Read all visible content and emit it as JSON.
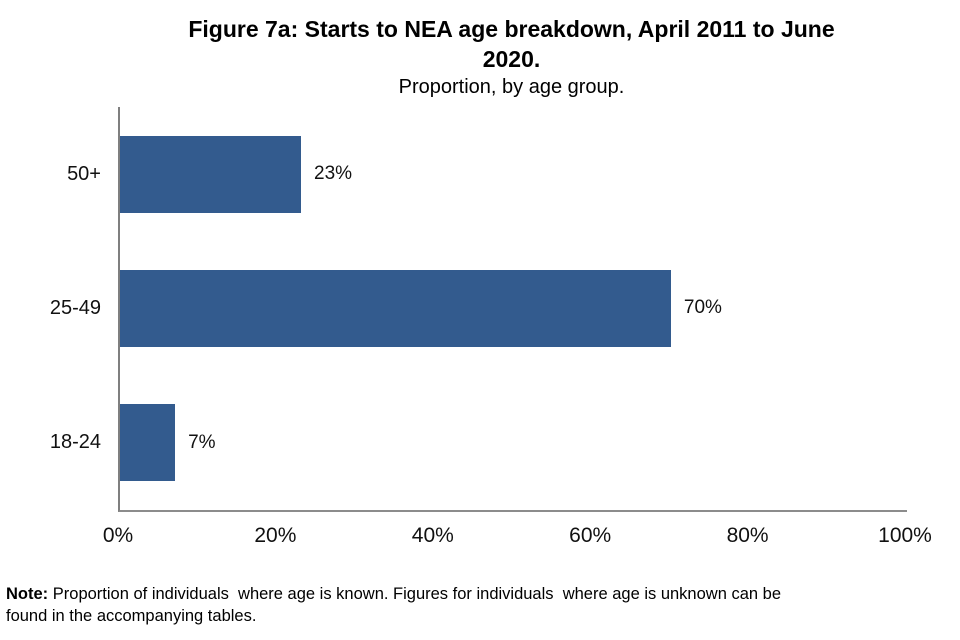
{
  "header": {
    "title_line1": "Figure 7a: Starts to NEA age breakdown, April 2011 to June",
    "title_line2": "2020.",
    "subtitle": "Proportion, by age group."
  },
  "note": {
    "label": "Note:",
    "line1": "Proportion of individuals  where age is known. Figures for individuals  where age is unknown can be",
    "line2": "found in the accompanying tables."
  },
  "chart_data": {
    "type": "bar",
    "orientation": "horizontal",
    "title": "Figure 7a: Starts to NEA age breakdown, April 2011 to June 2020.",
    "subtitle": "Proportion, by age group.",
    "categories": [
      "50+",
      "25-49",
      "18-24"
    ],
    "values": [
      23,
      70,
      7
    ],
    "value_labels": [
      "23%",
      "70%",
      "7%"
    ],
    "xlabel": "",
    "ylabel": "",
    "xlim": [
      0,
      100
    ],
    "x_tick_labels": [
      "0%",
      "20%",
      "40%",
      "60%",
      "80%",
      "100%"
    ],
    "grid": false,
    "legend": false,
    "bar_color": "#335B8E",
    "axis_color": "#7f7f7f"
  }
}
